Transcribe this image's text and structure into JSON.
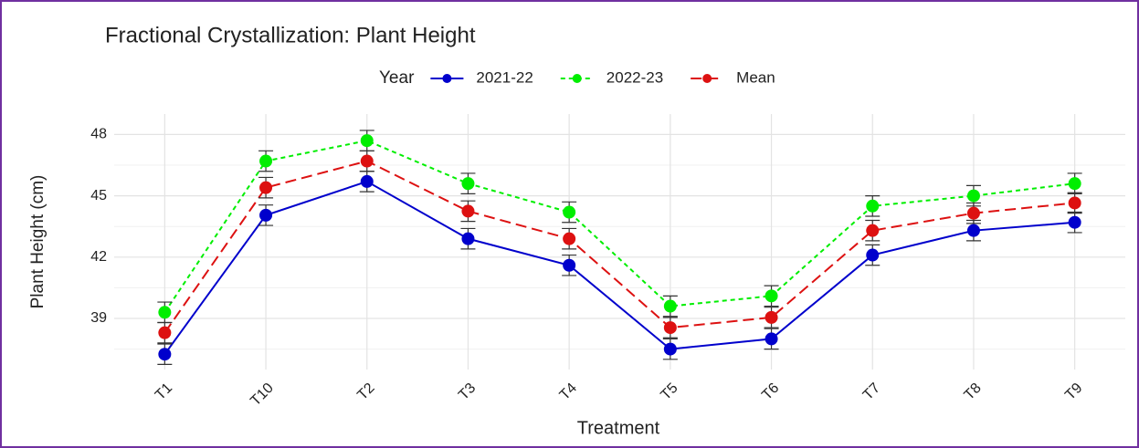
{
  "chart_data": {
    "type": "line",
    "title": "Fractional Crystallization: Plant Height",
    "legend_title": "Year",
    "x_label": "Treatment",
    "y_label": "Plant Height (cm)",
    "categories": [
      "T1",
      "T10",
      "T2",
      "T3",
      "T4",
      "T5",
      "T6",
      "T7",
      "T8",
      "T9"
    ],
    "series": [
      {
        "name": "2021-22",
        "color": "#0000cc",
        "line_style": "solid",
        "values": [
          37.25,
          44.05,
          45.7,
          42.9,
          41.6,
          37.5,
          38.0,
          42.1,
          43.3,
          43.7
        ],
        "errors": [
          0.5,
          0.5,
          0.5,
          0.5,
          0.5,
          0.5,
          0.5,
          0.5,
          0.5,
          0.5
        ]
      },
      {
        "name": "2022-23",
        "color": "#00ee00",
        "line_style": "dotted",
        "values": [
          39.3,
          46.7,
          47.7,
          45.6,
          44.2,
          39.6,
          40.1,
          44.5,
          45.0,
          45.6
        ],
        "errors": [
          0.5,
          0.5,
          0.5,
          0.5,
          0.5,
          0.5,
          0.5,
          0.5,
          0.5,
          0.5
        ]
      },
      {
        "name": "Mean",
        "color": "#dd1111",
        "line_style": "dashed",
        "values": [
          38.3,
          45.4,
          46.7,
          44.25,
          42.9,
          38.55,
          39.05,
          43.3,
          44.15,
          44.65
        ],
        "errors": [
          0.5,
          0.5,
          0.5,
          0.5,
          0.5,
          0.5,
          0.5,
          0.5,
          0.5,
          0.5
        ]
      }
    ],
    "ylim": [
      36.5,
      49
    ],
    "yticks": [
      39,
      42,
      45,
      48
    ],
    "minor_yticks": [
      37.5,
      40.5,
      43.5,
      46.5
    ],
    "grid": true,
    "legend_position": "top"
  }
}
